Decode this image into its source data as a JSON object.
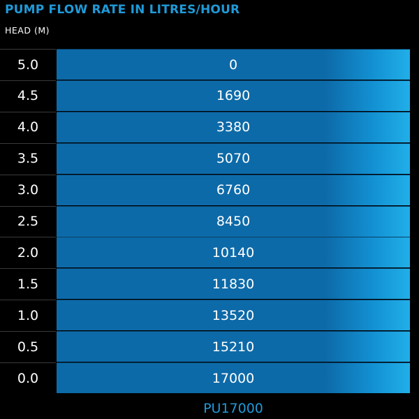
{
  "chart_data": {
    "type": "table",
    "title": "PUMP FLOW RATE IN LITRES/HOUR",
    "subtitle": "HEAD (M)",
    "columns": [
      "HEAD (M)",
      "PU17000"
    ],
    "head": [
      "5.0",
      "4.5",
      "4.0",
      "3.5",
      "3.0",
      "2.5",
      "2.0",
      "1.5",
      "1.0",
      "0.5",
      "0.0"
    ],
    "flow": [
      "0",
      "1690",
      "3380",
      "5070",
      "6760",
      "8450",
      "10140",
      "11830",
      "13520",
      "15210",
      "17000"
    ],
    "model": "PU17000"
  },
  "colors": {
    "title": "#1f9ad8",
    "cell_blue": "#0d6aa8",
    "cell_blue_light": "#21afe8",
    "background": "#000000"
  }
}
